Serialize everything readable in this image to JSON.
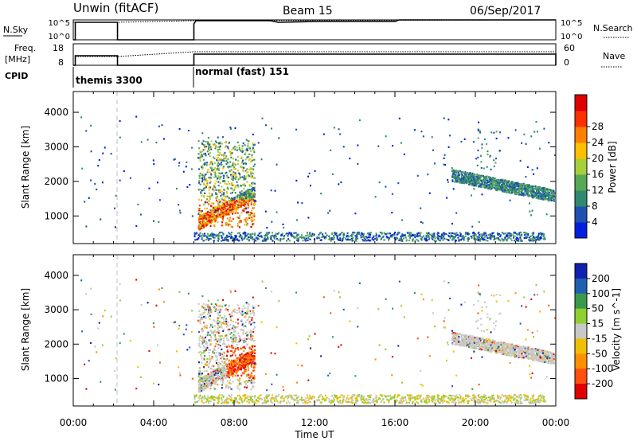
{
  "header": {
    "station": "Unwin (fitACF)",
    "beam": "Beam 15",
    "date": "06/Sep/2017"
  },
  "strips": {
    "nsky_label": "N.Sky",
    "nsky_ticks": [
      "10^5",
      "10^0"
    ],
    "nsearch_label": "N.Search",
    "nsearch_ticks": [
      "10^5",
      "10^0"
    ],
    "freq_label_1": "Freq.",
    "freq_label_2": "[MHz]",
    "freq_ticks": [
      "18",
      "8"
    ],
    "nave_label": "Nave",
    "nave_ticks": [
      "60",
      "0"
    ],
    "cpid_label": "CPID",
    "cpid_segments": [
      {
        "label": "themis 3300",
        "start_hour": 0
      },
      {
        "label": "normal (fast) 151",
        "start_hour": 6
      }
    ]
  },
  "chart_data": [
    {
      "type": "heatmap",
      "name": "power-panel",
      "xlabel": "",
      "ylabel": "Slant Range [km]",
      "xlim": [
        0,
        24
      ],
      "ylim": [
        200,
        4600
      ],
      "yticks": [
        "1000",
        "2000",
        "3000",
        "4000"
      ],
      "colorbar_label": "Power [dB]",
      "colorbar_ticks": [
        "4",
        "8",
        "12",
        "16",
        "20",
        "24",
        "28"
      ],
      "colors": [
        "#0020e0",
        "#2050b0",
        "#2f8a70",
        "#56a855",
        "#a6cf3a",
        "#ffc000",
        "#ff8000",
        "#ff3000",
        "#e00000"
      ],
      "dashed_line_hour": 2.1
    },
    {
      "type": "heatmap",
      "name": "velocity-panel",
      "xlabel": "Time UT",
      "ylabel": "Slant Range [km]",
      "xlim": [
        0,
        24
      ],
      "ylim": [
        200,
        4600
      ],
      "xticks": [
        "00:00",
        "04:00",
        "08:00",
        "12:00",
        "16:00",
        "20:00",
        "00:00"
      ],
      "yticks": [
        "1000",
        "2000",
        "3000",
        "4000"
      ],
      "colorbar_label": "Velocity [m s^-1]",
      "colorbar_ticks": [
        "200",
        "100",
        "50",
        "15",
        "-15",
        "-50",
        "-100",
        "-200"
      ],
      "colors": [
        "#1020b0",
        "#2060b0",
        "#3a9a4a",
        "#8fd030",
        "#c8c8c8",
        "#f0c000",
        "#ff9000",
        "#ff5010",
        "#e00000"
      ],
      "dashed_line_hour": 2.1
    }
  ]
}
